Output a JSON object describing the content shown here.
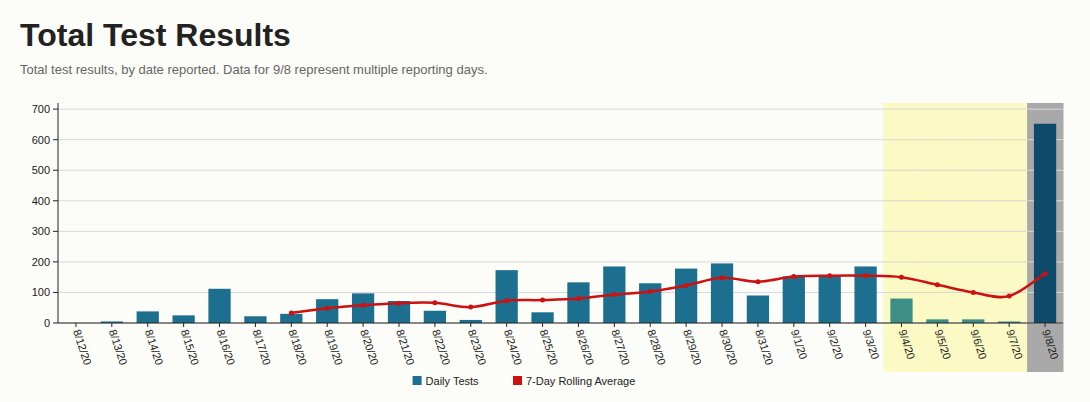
{
  "chart_data": {
    "type": "bar",
    "title": "Total Test Results",
    "subtitle": "Total test results, by date reported. Data for 9/8 represent multiple reporting days.",
    "categories": [
      "8/12/20",
      "8/13/20",
      "8/14/20",
      "8/15/20",
      "8/16/20",
      "8/17/20",
      "8/18/20",
      "8/19/20",
      "8/20/20",
      "8/21/20",
      "8/22/20",
      "8/23/20",
      "8/24/20",
      "8/25/20",
      "8/26/20",
      "8/27/20",
      "8/28/20",
      "8/29/20",
      "8/30/20",
      "8/31/20",
      "9/1/20",
      "9/2/20",
      "9/3/20",
      "9/4/20",
      "9/5/20",
      "9/6/20",
      "9/7/20",
      "9/8/20"
    ],
    "series": [
      {
        "name": "Daily Tests",
        "type": "bar",
        "color": "#1c6f8f",
        "colors": [
          "#1c6f8f",
          "#1c6f8f",
          "#1c6f8f",
          "#1c6f8f",
          "#1c6f8f",
          "#1c6f8f",
          "#1c6f8f",
          "#1c6f8f",
          "#1c6f8f",
          "#1c6f8f",
          "#1c6f8f",
          "#1c6f8f",
          "#1c6f8f",
          "#1c6f8f",
          "#1c6f8f",
          "#1c6f8f",
          "#1c6f8f",
          "#1c6f8f",
          "#1c6f8f",
          "#1c6f8f",
          "#1c6f8f",
          "#1c6f8f",
          "#1c6f8f",
          "#3d8f86",
          "#3d8f86",
          "#3d8f86",
          "#3d8f86",
          "#0e4a6a"
        ],
        "values": [
          0,
          5,
          38,
          25,
          112,
          22,
          30,
          78,
          97,
          72,
          40,
          10,
          173,
          35,
          133,
          185,
          130,
          178,
          195,
          90,
          152,
          157,
          185,
          80,
          12,
          12,
          5,
          652
        ]
      },
      {
        "name": "7-Day Rolling Average",
        "type": "line",
        "color": "#cc1111",
        "marker": "circle",
        "values": [
          null,
          null,
          null,
          null,
          null,
          null,
          33,
          48,
          58,
          65,
          66,
          52,
          73,
          75,
          80,
          93,
          103,
          123,
          148,
          135,
          152,
          155,
          155,
          150,
          125,
          100,
          88,
          162
        ]
      }
    ],
    "ylim": [
      0,
      720
    ],
    "yticks": [
      0,
      100,
      200,
      300,
      400,
      500,
      600,
      700
    ],
    "grid": true,
    "legend": "bottom"
  }
}
